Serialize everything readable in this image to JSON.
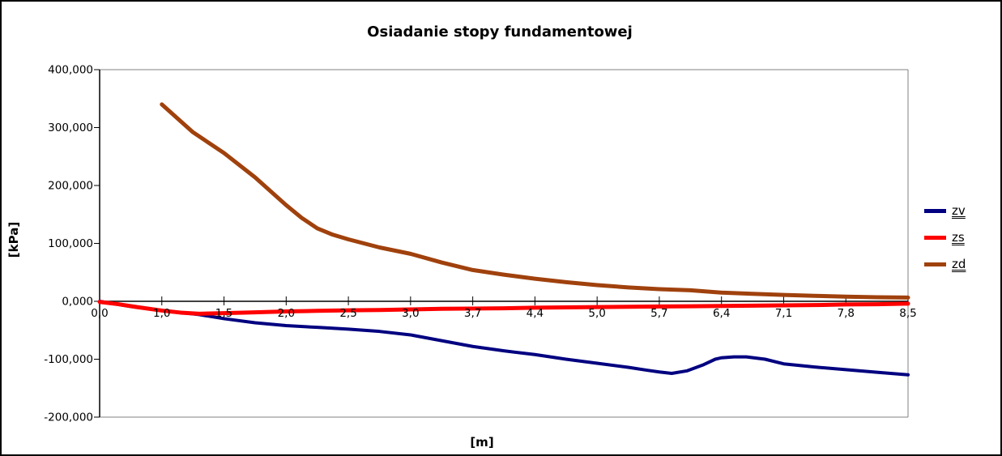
{
  "chart_data": {
    "type": "line",
    "title": "Osiadanie stopy fundamentowej",
    "xlabel": "[m]",
    "ylabel": "[kPa]",
    "x_ticklabels": [
      "0,0",
      "1,0",
      "1,5",
      "2,0",
      "2,5",
      "3,0",
      "3,7",
      "4,4",
      "5,0",
      "5,7",
      "6,4",
      "7,1",
      "7,8",
      "8,5"
    ],
    "y_ticklabels": [
      "400,000",
      "300,000",
      "200,000",
      "100,000",
      "0,000",
      "-100,000",
      "-200,000"
    ],
    "y_tickvalues": [
      400,
      300,
      200,
      100,
      0,
      -100,
      -200
    ],
    "ylim": [
      -200,
      400
    ],
    "grid": false,
    "legend_position": "right",
    "x_encoding": "category positions 0-13 matching x_ticklabels; fractional positions are interpolated depths in m",
    "series": [
      {
        "name": "zv",
        "color": "#000080",
        "width": 4,
        "points": [
          [
            0,
            0
          ],
          [
            0.5,
            -9
          ],
          [
            1,
            -16
          ],
          [
            1.3,
            -19.5
          ],
          [
            1.6,
            -23
          ],
          [
            2,
            -30
          ],
          [
            2.5,
            -37
          ],
          [
            3,
            -42
          ],
          [
            3.5,
            -45
          ],
          [
            4,
            -48
          ],
          [
            4.5,
            -52
          ],
          [
            5,
            -58
          ],
          [
            5.5,
            -68
          ],
          [
            6,
            -78
          ],
          [
            6.5,
            -85.5
          ],
          [
            7,
            -92
          ],
          [
            7.5,
            -100
          ],
          [
            8,
            -107
          ],
          [
            8.5,
            -114
          ],
          [
            8.8,
            -119
          ],
          [
            9,
            -122
          ],
          [
            9.2,
            -124.5
          ],
          [
            9.45,
            -120
          ],
          [
            9.7,
            -110
          ],
          [
            9.9,
            -100
          ],
          [
            10,
            -97.5
          ],
          [
            10.2,
            -96
          ],
          [
            10.4,
            -96
          ],
          [
            10.7,
            -100
          ],
          [
            11,
            -108
          ],
          [
            11.5,
            -113.5
          ],
          [
            12,
            -118
          ],
          [
            12.5,
            -122.5
          ],
          [
            13,
            -127
          ]
        ]
      },
      {
        "name": "zs",
        "color": "#FF0000",
        "width": 5,
        "points": [
          [
            0,
            -1
          ],
          [
            0.3,
            -5
          ],
          [
            0.6,
            -10
          ],
          [
            1,
            -16
          ],
          [
            1.3,
            -19.5
          ],
          [
            1.6,
            -21.5
          ],
          [
            2,
            -20.5
          ],
          [
            2.5,
            -19
          ],
          [
            3,
            -17.5
          ],
          [
            3.5,
            -16.5
          ],
          [
            4,
            -15.5
          ],
          [
            4.5,
            -15
          ],
          [
            5,
            -14
          ],
          [
            5.5,
            -13
          ],
          [
            6,
            -12.5
          ],
          [
            6.5,
            -12
          ],
          [
            7,
            -11
          ],
          [
            7.5,
            -10.5
          ],
          [
            8,
            -10
          ],
          [
            8.5,
            -9.5
          ],
          [
            9,
            -9
          ],
          [
            9.5,
            -8.5
          ],
          [
            10,
            -8
          ],
          [
            10.5,
            -7.5
          ],
          [
            11,
            -7
          ],
          [
            11.5,
            -6.5
          ],
          [
            12,
            -5.5
          ],
          [
            12.5,
            -5
          ],
          [
            13,
            -4
          ]
        ]
      },
      {
        "name": "zd",
        "color": "#A0410D",
        "width": 5,
        "points": [
          [
            1,
            340
          ],
          [
            1.5,
            292
          ],
          [
            2,
            256
          ],
          [
            2.5,
            214
          ],
          [
            3,
            166
          ],
          [
            3.25,
            144
          ],
          [
            3.5,
            126
          ],
          [
            3.75,
            115
          ],
          [
            4,
            107
          ],
          [
            4.5,
            93
          ],
          [
            5,
            82
          ],
          [
            5.5,
            67
          ],
          [
            6,
            54
          ],
          [
            6.5,
            46
          ],
          [
            7,
            39
          ],
          [
            7.5,
            33
          ],
          [
            8,
            28
          ],
          [
            8.5,
            24
          ],
          [
            9,
            21
          ],
          [
            9.5,
            19
          ],
          [
            10,
            15
          ],
          [
            10.5,
            13
          ],
          [
            11,
            11
          ],
          [
            11.5,
            9.5
          ],
          [
            12,
            8
          ],
          [
            12.5,
            7
          ],
          [
            13,
            6.5
          ]
        ]
      }
    ]
  }
}
